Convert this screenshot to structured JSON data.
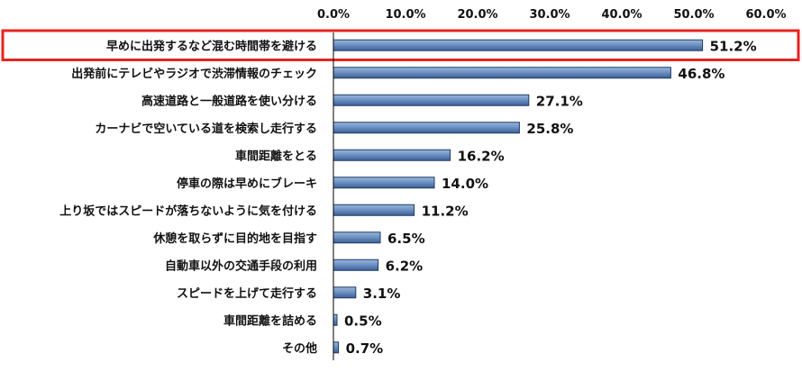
{
  "chart_data": {
    "type": "bar",
    "orientation": "horizontal",
    "categories": [
      "早めに出発するなど混む時間帯を避ける",
      "出発前にテレビやラジオで渋滞情報のチェック",
      "高速道路と一般道路を使い分ける",
      "カーナビで空いている道を検索し走行する",
      "車間距離をとる",
      "停車の際は早めにブレーキ",
      "上り坂ではスピードが落ちないように気を付ける",
      "休憩を取らずに目的地を目指す",
      "自動車以外の交通手段の利用",
      "スピードを上げて走行する",
      "車間距離を詰める",
      "その他"
    ],
    "values": [
      51.2,
      46.8,
      27.1,
      25.8,
      16.2,
      14.0,
      11.2,
      6.5,
      6.2,
      3.1,
      0.5,
      0.7
    ],
    "data_labels": [
      "51.2%",
      "46.8%",
      "27.1%",
      "25.8%",
      "16.2%",
      "14.0%",
      "11.2%",
      "6.5%",
      "6.2%",
      "3.1%",
      "0.5%",
      "0.7%"
    ],
    "x_ticks": [
      "0.0%",
      "10.0%",
      "20.0%",
      "30.0%",
      "40.0%",
      "50.0%",
      "60.0%"
    ],
    "xlim": [
      0,
      60
    ],
    "axis_position": "top",
    "grid": false,
    "highlighted_category_index": 0,
    "colors": {
      "bar_top": "#9bb7dc",
      "bar_mid": "#6f93c4",
      "bar_bottom": "#3d5f95",
      "bar_border": "#1f3b66",
      "highlight_border": "#e8231f"
    }
  }
}
